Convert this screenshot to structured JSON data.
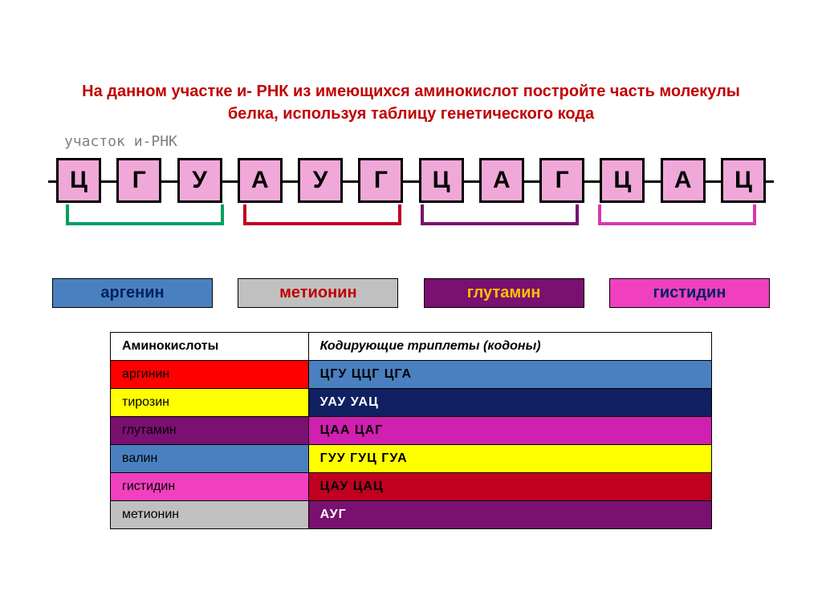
{
  "title": "На данном участке и- РНК из имеющихся аминокислот постройте часть молекулы белка, используя таблицу генетического кода",
  "subtitle": "участок и-РНК",
  "rna": {
    "box_bg": "#f0a8d8",
    "nucleotides": [
      "Ц",
      "Г",
      "У",
      "А",
      "У",
      "Г",
      "Ц",
      "А",
      "Г",
      "Ц",
      "А",
      "Ц"
    ]
  },
  "brackets": [
    {
      "color": "#00a060"
    },
    {
      "color": "#c00020"
    },
    {
      "color": "#7a1070"
    },
    {
      "color": "#d838b0"
    }
  ],
  "amino_labels": [
    {
      "text": "аргенин",
      "bg": "#4a80c0",
      "fg": "#002060"
    },
    {
      "text": "метионин",
      "bg": "#c0c0c0",
      "fg": "#c00000"
    },
    {
      "text": "глутамин",
      "bg": "#7a1070",
      "fg": "#ffc000"
    },
    {
      "text": "гистидин",
      "bg": "#f040c0",
      "fg": "#002060"
    }
  ],
  "table": {
    "header_amino": "Аминокислоты",
    "header_codons": "Кодирующие триплеты (кодоны)",
    "rows": [
      {
        "amino": "аргинин",
        "codons": "ЦГУ    ЦЦГ   ЦГА",
        "amino_bg": "#ff0000",
        "amino_fg": "#000000",
        "codon_bg": "#4a80c0",
        "codon_fg": "#000000"
      },
      {
        "amino": "тирозин",
        "codons": "УАУ    УАЦ",
        "amino_bg": "#ffff00",
        "amino_fg": "#000000",
        "codon_bg": "#102060",
        "codon_fg": "#ffffff"
      },
      {
        "amino": "глутамин",
        "codons": "ЦАА   ЦАГ",
        "amino_bg": "#7a1070",
        "amino_fg": "#000000",
        "codon_bg": "#d020b0",
        "codon_fg": "#000000"
      },
      {
        "amino": "валин",
        "codons": "ГУУ    ГУЦ    ГУА",
        "amino_bg": "#4a80c0",
        "amino_fg": "#000000",
        "codon_bg": "#ffff00",
        "codon_fg": "#000000"
      },
      {
        "amino": "гистидин",
        "codons": "ЦАУ   ЦАЦ",
        "amino_bg": "#f040c0",
        "amino_fg": "#000000",
        "codon_bg": "#c00020",
        "codon_fg": "#000000"
      },
      {
        "amino": "метионин",
        "codons": "АУГ",
        "amino_bg": "#c0c0c0",
        "amino_fg": "#000000",
        "codon_bg": "#7a1070",
        "codon_fg": "#ffffff"
      }
    ]
  }
}
